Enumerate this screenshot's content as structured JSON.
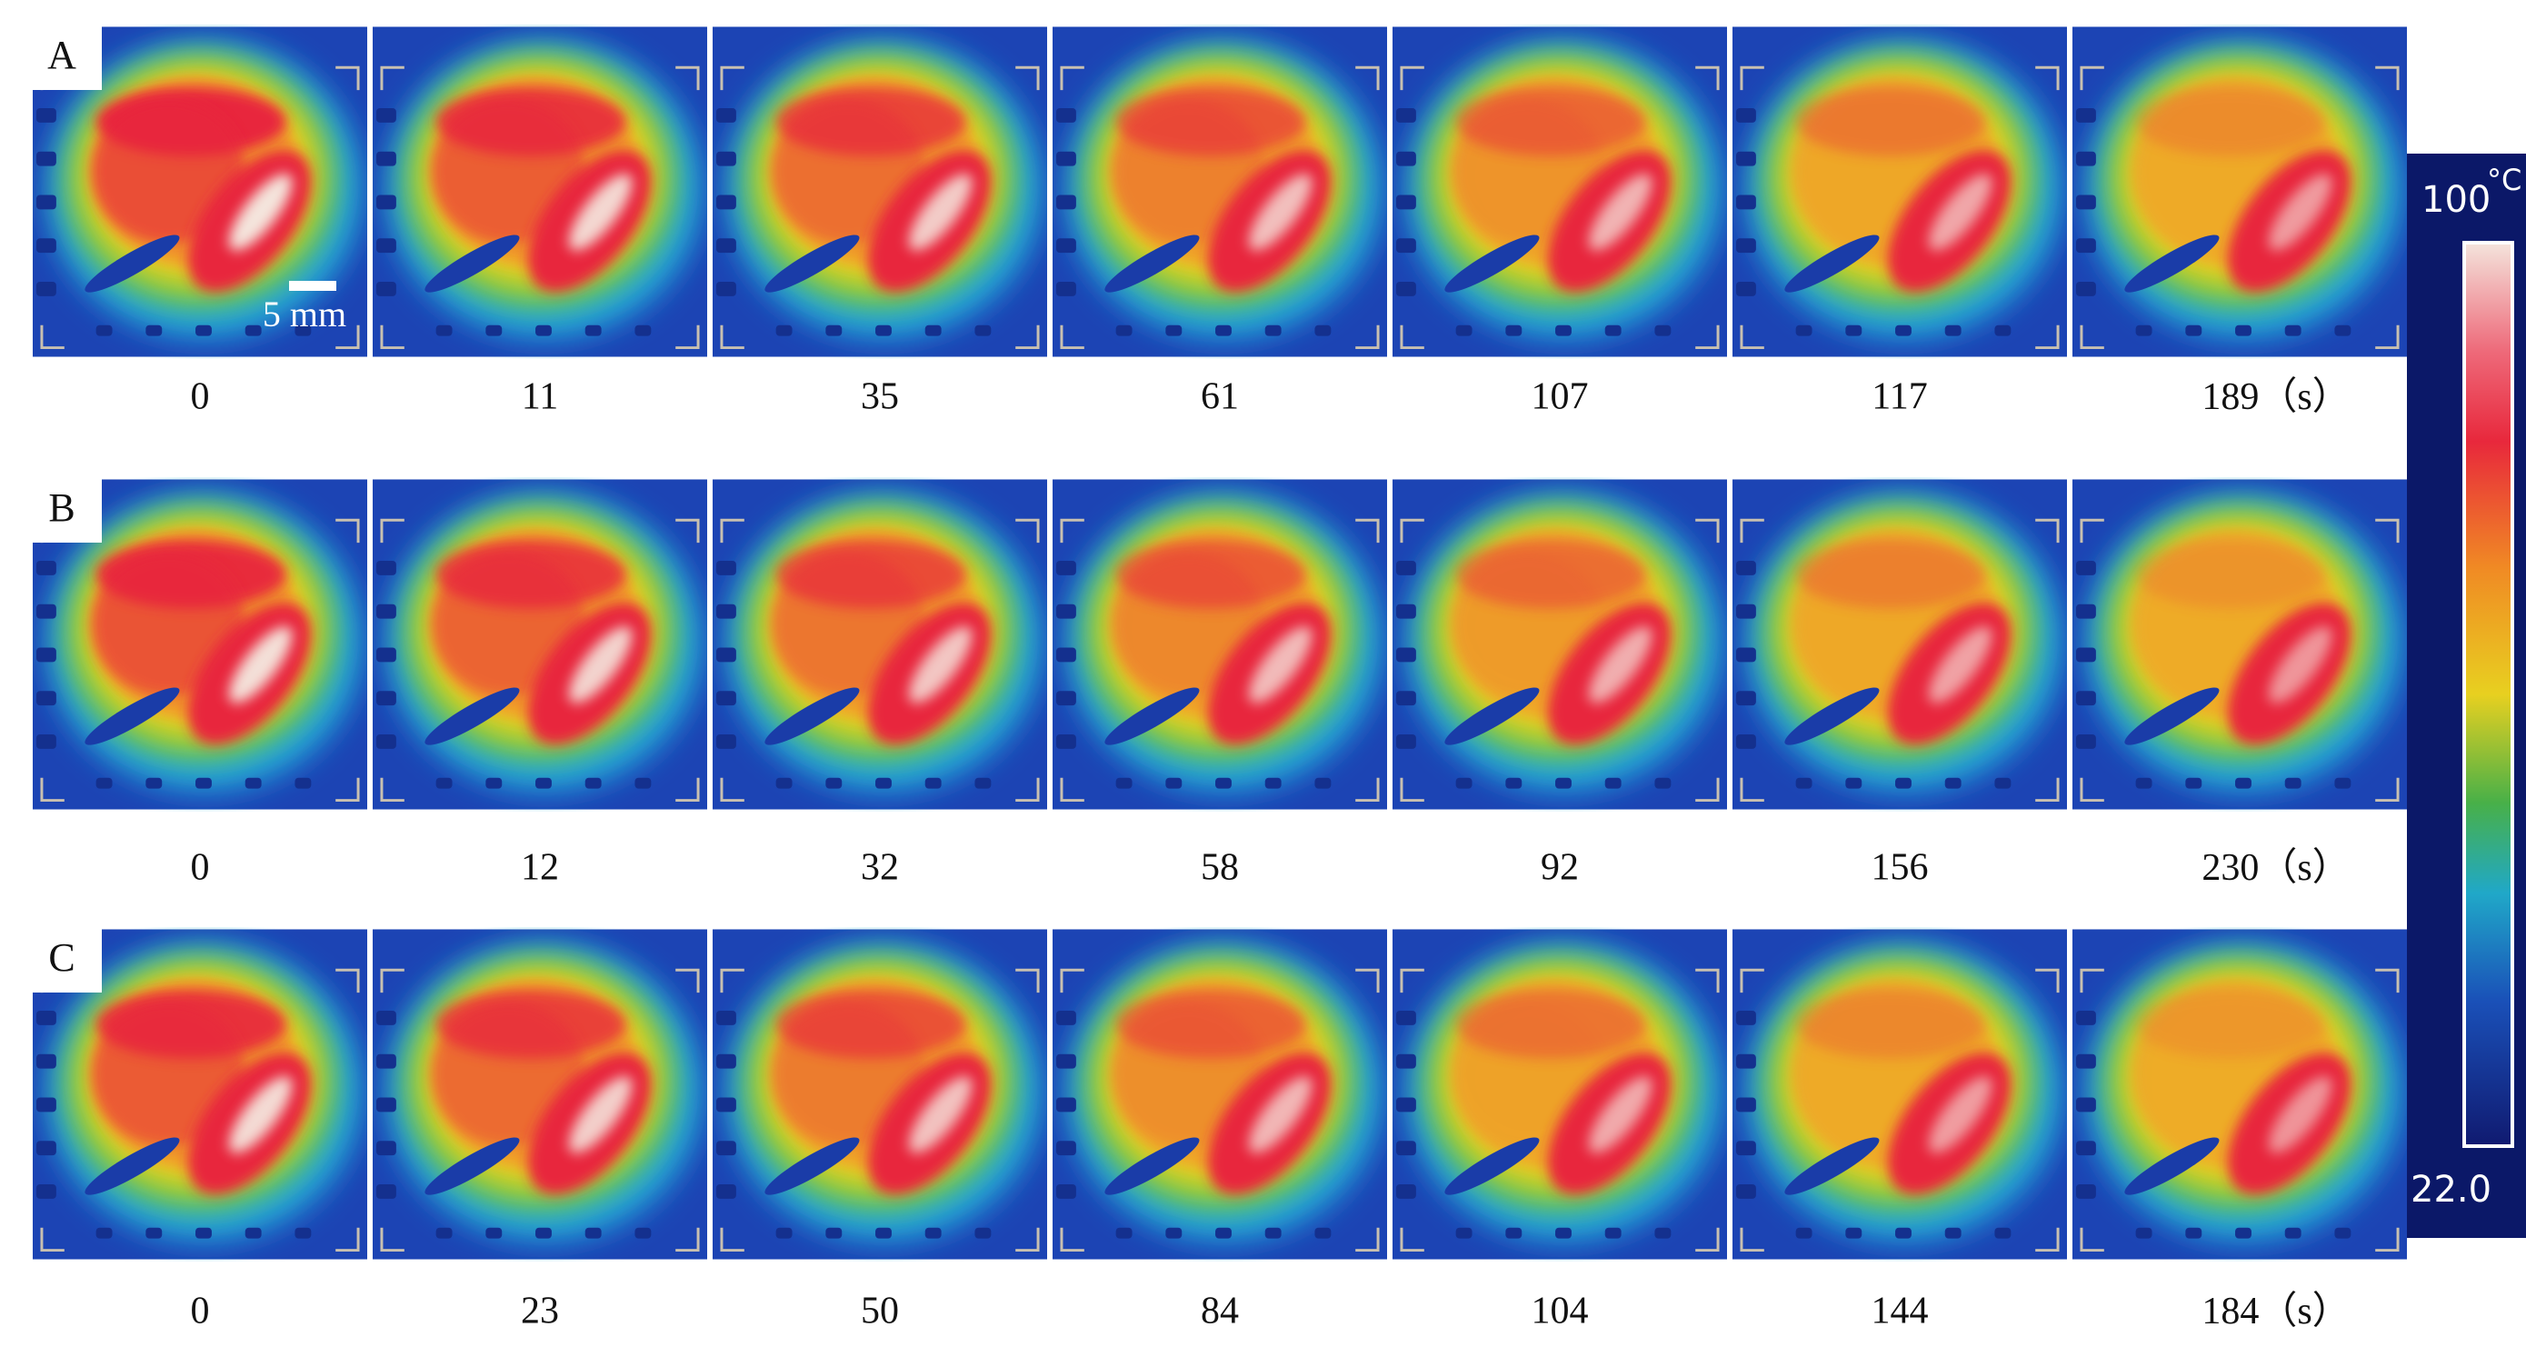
{
  "panels": [
    {
      "label": "A",
      "times": [
        0,
        11,
        35,
        61,
        107,
        117,
        189
      ],
      "unit": "（s）"
    },
    {
      "label": "B",
      "times": [
        0,
        12,
        32,
        58,
        92,
        156,
        230
      ],
      "unit": "（s）"
    },
    {
      "label": "C",
      "times": [
        0,
        23,
        50,
        84,
        104,
        144,
        184
      ],
      "unit": "（s）"
    }
  ],
  "scale_bar": "5 mm",
  "colorbar": {
    "max": "100",
    "unit": "°C",
    "min": "22.0"
  }
}
